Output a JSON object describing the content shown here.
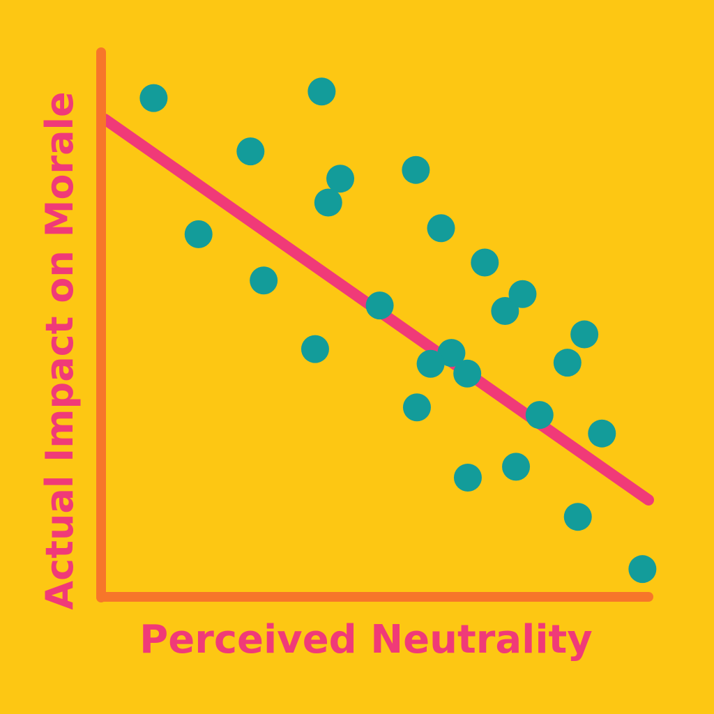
{
  "chart_data": {
    "type": "scatter",
    "title": "",
    "xlabel": "Perceived Neutrality",
    "ylabel": "Actual Impact on Morale",
    "xlim": [
      0,
      100
    ],
    "ylim": [
      0,
      100
    ],
    "grid": false,
    "legend": "none",
    "series": [
      {
        "points": [
          {
            "x": 9.6,
            "y": 91.6
          },
          {
            "x": 17.8,
            "y": 66.6
          },
          {
            "x": 27.3,
            "y": 81.8
          },
          {
            "x": 29.7,
            "y": 58.1
          },
          {
            "x": 39.1,
            "y": 45.5
          },
          {
            "x": 40.3,
            "y": 92.8
          },
          {
            "x": 41.5,
            "y": 72.4
          },
          {
            "x": 43.7,
            "y": 76.8
          },
          {
            "x": 50.9,
            "y": 53.5
          },
          {
            "x": 57.7,
            "y": 34.8
          },
          {
            "x": 62.1,
            "y": 67.7
          },
          {
            "x": 73.8,
            "y": 52.5
          },
          {
            "x": 57.5,
            "y": 78.4
          },
          {
            "x": 64.0,
            "y": 44.8
          },
          {
            "x": 67.0,
            "y": 21.9
          },
          {
            "x": 60.2,
            "y": 42.8
          },
          {
            "x": 66.9,
            "y": 41.0
          },
          {
            "x": 70.1,
            "y": 61.4
          },
          {
            "x": 77.0,
            "y": 55.6
          },
          {
            "x": 80.1,
            "y": 33.4
          },
          {
            "x": 75.8,
            "y": 23.9
          },
          {
            "x": 85.2,
            "y": 43.0
          },
          {
            "x": 87.1,
            "y": 14.7
          },
          {
            "x": 88.3,
            "y": 48.2
          },
          {
            "x": 91.5,
            "y": 30.0
          },
          {
            "x": 98.9,
            "y": 5.1
          }
        ]
      }
    ],
    "trend_line": {
      "x": [
        0.7,
        100.0
      ],
      "y": [
        87.7,
        17.8
      ]
    },
    "colors": {
      "background": "#FDC713",
      "axis": "#F7762A",
      "points": "#139C9A",
      "trend": "#F03A78",
      "labels": "#F03A78"
    }
  }
}
